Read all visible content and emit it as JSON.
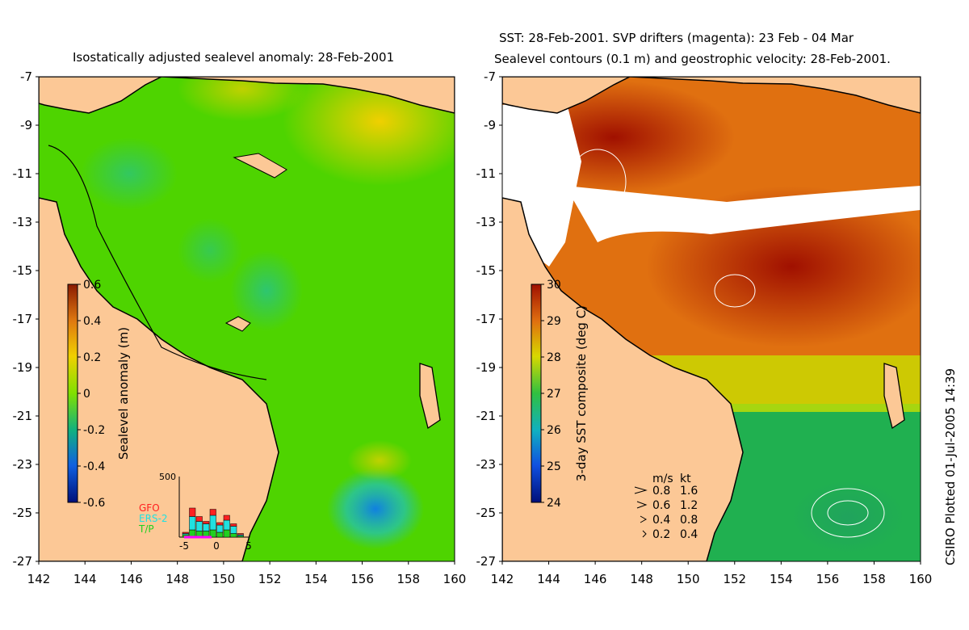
{
  "left_panel": {
    "title": "Isostatically adjusted sealevel anomaly: 28-Feb-2001",
    "lat_ticks": [
      "-7",
      "-9",
      "-11",
      "-13",
      "-15",
      "-17",
      "-19",
      "-21",
      "-23",
      "-25",
      "-27"
    ],
    "lon_ticks": [
      "142",
      "144",
      "146",
      "148",
      "150",
      "152",
      "154",
      "156",
      "158",
      "160"
    ],
    "colorbar": {
      "label": "Sealevel anomaly (m)",
      "ticks": [
        "0.6",
        "0.4",
        "0.2",
        "0",
        "-0.2",
        "-0.4",
        "-0.6"
      ],
      "range": [
        -0.6,
        0.6
      ]
    },
    "histogram": {
      "ymax_label": "500",
      "x_ticks": [
        "-5",
        "0",
        "5"
      ],
      "legend": [
        "GFO",
        "ERS-2",
        "T/P"
      ],
      "legend_colors": [
        "#ff2020",
        "#20e0e0",
        "#20d020"
      ],
      "bars": [
        {
          "tp": 20,
          "ers": 10,
          "gfo": 10
        },
        {
          "tp": 60,
          "ers": 110,
          "gfo": 70
        },
        {
          "tp": 50,
          "ers": 80,
          "gfo": 40
        },
        {
          "tp": 50,
          "ers": 60,
          "gfo": 20
        },
        {
          "tp": 60,
          "ers": 120,
          "gfo": 50
        },
        {
          "tp": 40,
          "ers": 60,
          "gfo": 20
        },
        {
          "tp": 60,
          "ers": 80,
          "gfo": 40
        },
        {
          "tp": 30,
          "ers": 60,
          "gfo": 20
        },
        {
          "tp": 10,
          "ers": 10,
          "gfo": 10
        }
      ]
    }
  },
  "right_panel": {
    "title_line1": "SST: 28-Feb-2001. SVP drifters (magenta): 23 Feb - 04 Mar",
    "title_line2": "Sealevel contours (0.1 m) and geostrophic velocity: 28-Feb-2001.",
    "lat_ticks": [
      "-7",
      "-9",
      "-11",
      "-13",
      "-15",
      "-17",
      "-19",
      "-21",
      "-23",
      "-25",
      "-27"
    ],
    "lon_ticks": [
      "142",
      "144",
      "146",
      "148",
      "150",
      "152",
      "154",
      "156",
      "158",
      "160"
    ],
    "colorbar": {
      "label": "3-day SST composite (deg C)",
      "ticks": [
        "30",
        "29",
        "28",
        "27",
        "26",
        "25",
        "24"
      ],
      "range": [
        24,
        30
      ]
    },
    "velocity_legend": {
      "header_ms": "m/s",
      "header_kt": "kt",
      "rows": [
        {
          "ms": "0.8",
          "kt": "1.6"
        },
        {
          "ms": "0.6",
          "kt": "1.2"
        },
        {
          "ms": "0.4",
          "kt": "0.8"
        },
        {
          "ms": "0.2",
          "kt": "0.4"
        }
      ]
    }
  },
  "credit": "CSIRO Plotted 01-Jul-2005 14:39",
  "colors": {
    "land": "#fcc896",
    "sla_base": "#4ed400",
    "sst_hot": "#a01000",
    "sst_warm": "#e07010",
    "sst_mid": "#c8e000",
    "sst_cool": "#20b050"
  }
}
